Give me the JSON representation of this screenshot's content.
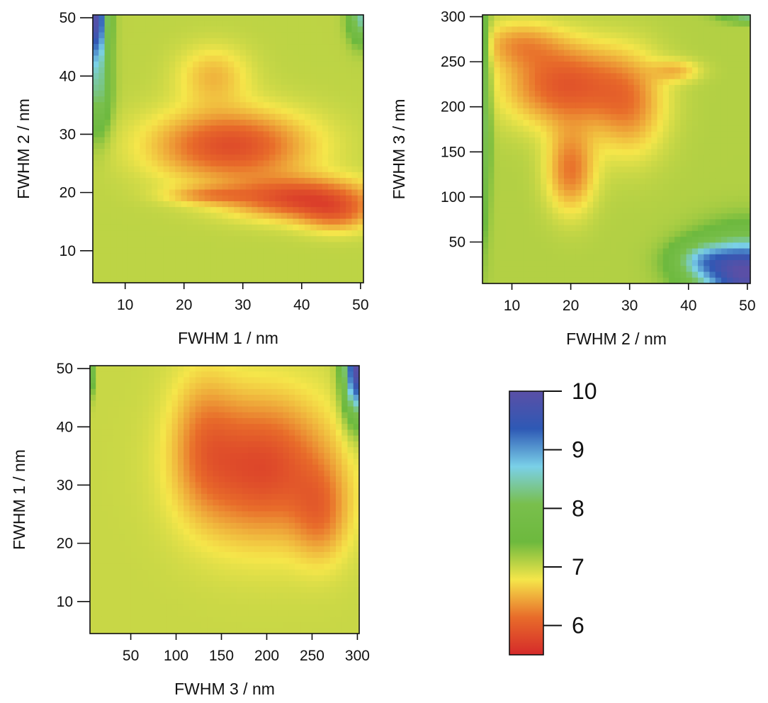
{
  "chart_data": [
    {
      "type": "heatmap",
      "id": "p1",
      "xlabel": "FWHM 1 / nm",
      "ylabel": "FWHM 2 / nm",
      "xlim": [
        4.5,
        50.5
      ],
      "ylim": [
        4.5,
        50.5
      ],
      "xticks": [
        10,
        20,
        30,
        40,
        50
      ],
      "yticks": [
        10,
        20,
        30,
        40,
        50
      ],
      "hotspots": [
        {
          "x": 28,
          "y": 28,
          "sx": 13,
          "sy": 6,
          "depth": 1.2
        },
        {
          "x": 40,
          "y": 19,
          "sx": 12,
          "sy": 3.5,
          "depth": 1.2
        },
        {
          "x": 46,
          "y": 16,
          "sx": 6,
          "sy": 3,
          "depth": 0.6
        },
        {
          "x": 24,
          "y": 19.5,
          "sx": 7,
          "sy": 1.5,
          "depth": 0.5
        },
        {
          "x": 25,
          "y": 40,
          "sx": 6,
          "sy": 5,
          "depth": 0.5
        }
      ],
      "baseline": 7.05,
      "highs": [
        {
          "x": 5,
          "y": 50,
          "sx": 2,
          "sy": 8,
          "height": 2.8
        },
        {
          "x": 5.5,
          "y": 37,
          "sx": 2,
          "sy": 7,
          "height": 1.1
        },
        {
          "x": 50,
          "y": 50,
          "sx": 2,
          "sy": 4,
          "height": 1.4
        }
      ]
    },
    {
      "type": "heatmap",
      "id": "p2",
      "xlabel": "FWHM 2 / nm",
      "ylabel": "FWHM 3 / nm",
      "xlim": [
        5,
        50.5
      ],
      "ylim": [
        4,
        302
      ],
      "xticks": [
        10,
        20,
        30,
        40,
        50
      ],
      "yticks": [
        50,
        100,
        150,
        200,
        250,
        300
      ],
      "hotspots": [
        {
          "x": 19,
          "y": 225,
          "sx": 10,
          "sy": 45,
          "depth": 1.15
        },
        {
          "x": 20,
          "y": 130,
          "sx": 4,
          "sy": 45,
          "depth": 0.9
        },
        {
          "x": 30,
          "y": 200,
          "sx": 6,
          "sy": 55,
          "depth": 0.7
        },
        {
          "x": 11,
          "y": 270,
          "sx": 7,
          "sy": 25,
          "depth": 0.6
        },
        {
          "x": 38,
          "y": 240,
          "sx": 4,
          "sy": 12,
          "depth": 0.5
        }
      ],
      "baseline": 7.1,
      "highs": [
        {
          "x": 50,
          "y": 15,
          "sx": 8,
          "sy": 40,
          "height": 2.9
        },
        {
          "x": 42,
          "y": 30,
          "sx": 5,
          "sy": 20,
          "height": 1.0
        },
        {
          "x": 5,
          "y": 200,
          "sx": 1.2,
          "sy": 120,
          "height": 1.3
        },
        {
          "x": 50,
          "y": 300,
          "sx": 4,
          "sy": 6,
          "height": 1.2
        }
      ]
    },
    {
      "type": "heatmap",
      "id": "p3",
      "xlabel": "FWHM 3 / nm",
      "ylabel": "FWHM 1 / nm",
      "xlim": [
        5,
        302
      ],
      "ylim": [
        4.5,
        50.5
      ],
      "xticks": [
        50,
        100,
        150,
        200,
        250,
        300
      ],
      "yticks": [
        10,
        20,
        30,
        40,
        50
      ],
      "hotspots": [
        {
          "x": 195,
          "y": 33,
          "sx": 75,
          "sy": 12,
          "depth": 1.2
        },
        {
          "x": 130,
          "y": 38,
          "sx": 35,
          "sy": 12,
          "depth": 0.5
        },
        {
          "x": 260,
          "y": 25,
          "sx": 30,
          "sy": 8,
          "depth": 0.6
        }
      ],
      "baseline": 7.0,
      "highs": [
        {
          "x": 300,
          "y": 50,
          "sx": 15,
          "sy": 8,
          "height": 3.0
        },
        {
          "x": 5,
          "y": 50,
          "sx": 3,
          "sy": 4,
          "height": 2.6
        }
      ]
    }
  ],
  "colorbar": {
    "min": 5.5,
    "max": 10,
    "ticks": [
      6,
      7,
      8,
      9,
      10
    ],
    "colors": [
      "#d52a2a",
      "#e86c2a",
      "#f5e64a",
      "#6db93e",
      "#79bf4c",
      "#7ad0e8",
      "#2e59b5",
      "#5a4fa6"
    ]
  }
}
